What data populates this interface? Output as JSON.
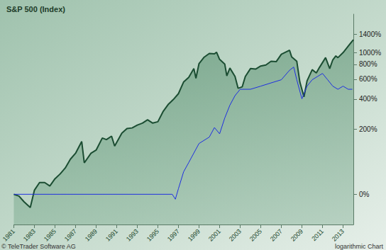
{
  "chart_data": {
    "type": "line",
    "title": "S&P 500 (Index)",
    "source": "© TeleTrader Software AG",
    "scale_note": "logarithmic Chart",
    "log": "y",
    "grid": false,
    "xlim": [
      1981,
      2014
    ],
    "xticks": [
      1981,
      1983,
      1985,
      1987,
      1989,
      1991,
      1993,
      1995,
      1997,
      1999,
      2001,
      2003,
      2005,
      2007,
      2009,
      2011,
      2013
    ],
    "ylim": [
      -40,
      2000
    ],
    "yticks": [
      {
        "value": 0,
        "label": "0%"
      },
      {
        "value": 200,
        "label": "200%"
      },
      {
        "value": 400,
        "label": "400%"
      },
      {
        "value": 600,
        "label": "600%"
      },
      {
        "value": 800,
        "label": "800%"
      },
      {
        "value": 1000,
        "label": "1000%"
      },
      {
        "value": 1400,
        "label": "1400%"
      }
    ],
    "series": [
      {
        "color": "#1b4d32",
        "type": "area",
        "x": [
          1981.0,
          1981.5,
          1982.0,
          1982.6,
          1983.0,
          1983.5,
          1984.0,
          1984.5,
          1985.0,
          1985.5,
          1986.0,
          1986.5,
          1987.0,
          1987.6,
          1987.85,
          1988.5,
          1989.0,
          1989.6,
          1990.0,
          1990.5,
          1990.8,
          1991.5,
          1992.0,
          1992.5,
          1993.0,
          1993.5,
          1994.0,
          1994.5,
          1995.0,
          1995.5,
          1996.0,
          1996.5,
          1997.0,
          1997.5,
          1998.0,
          1998.5,
          1998.7,
          1999.0,
          1999.5,
          2000.0,
          2000.5,
          2000.7,
          2001.0,
          2001.5,
          2001.7,
          2002.0,
          2002.5,
          2002.8,
          2003.2,
          2003.5,
          2004.0,
          2004.5,
          2005.0,
          2005.5,
          2006.0,
          2006.5,
          2007.0,
          2007.8,
          2008.0,
          2008.5,
          2008.8,
          2009.2,
          2009.5,
          2010.0,
          2010.4,
          2010.7,
          2011.3,
          2011.7,
          2012.0,
          2012.3,
          2012.5,
          2013.0,
          2013.5,
          2013.9,
          2014.0
        ],
        "values": [
          0,
          -3,
          -12,
          -20,
          7,
          22,
          22,
          15,
          30,
          41,
          56,
          81,
          100,
          144,
          70,
          100,
          111,
          159,
          152,
          167,
          126,
          181,
          204,
          207,
          222,
          233,
          252,
          233,
          241,
          304,
          356,
          396,
          448,
          567,
          622,
          737,
          611,
          811,
          915,
          981,
          974,
          1004,
          878,
          804,
          641,
          744,
          633,
          500,
          515,
          633,
          737,
          730,
          774,
          789,
          848,
          841,
          967,
          1041,
          922,
          848,
          567,
          419,
          581,
          722,
          678,
          752,
          907,
          737,
          870,
          937,
          907,
          996,
          1122,
          1233,
          1263
        ]
      },
      {
        "color": "#1f2fe0",
        "type": "line",
        "x": [
          1981.0,
          1996.4,
          1996.7,
          1997.0,
          1997.5,
          1998.0,
          1999.0,
          2000.0,
          2000.5,
          2001.0,
          2001.5,
          2002.0,
          2002.5,
          2003.0,
          2004.0,
          2005.0,
          2006.0,
          2007.0,
          2007.8,
          2008.2,
          2008.5,
          2009.0,
          2009.5,
          2010.0,
          2010.5,
          2011.0,
          2011.5,
          2012.0,
          2012.5,
          2013.0,
          2013.5,
          2013.9
        ],
        "values": [
          0,
          0,
          -8,
          10,
          46,
          71,
          136,
          163,
          209,
          178,
          263,
          351,
          430,
          490,
          490,
          522,
          557,
          593,
          714,
          759,
          593,
          402,
          522,
          593,
          631,
          671,
          593,
          522,
          490,
          522,
          490,
          490
        ]
      }
    ]
  }
}
